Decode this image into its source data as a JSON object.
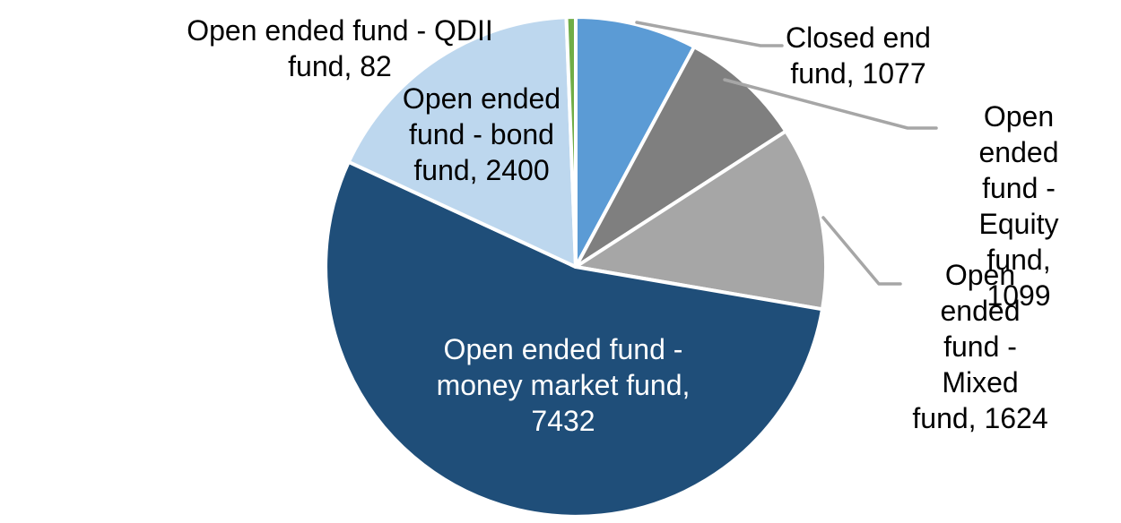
{
  "chart_data": {
    "type": "pie",
    "title": "",
    "legend": "none",
    "start_angle_deg": 0,
    "direction": "clockwise",
    "total": 13714,
    "background_color": "#ffffff",
    "slice_border_color": "#ffffff",
    "leader_line_color": "#a6a6a6",
    "slices": [
      {
        "name": "Closed end fund",
        "value": 1077,
        "color": "#5b9bd5",
        "label_text": "Closed end\nfund, 1077",
        "label_color": "#000000",
        "label_position": "outside-right-with-leader"
      },
      {
        "name": "Open ended fund - Equity fund",
        "value": 1099,
        "color": "#7f7f7f",
        "label_text": "Open ended\nfund - Equity\nfund, 1099",
        "label_color": "#000000",
        "label_position": "outside-right-with-leader"
      },
      {
        "name": "Open ended fund - Mixed fund",
        "value": 1624,
        "color": "#a6a6a6",
        "label_text": "Open ended\nfund - Mixed\nfund, 1624",
        "label_color": "#000000",
        "label_position": "outside-right-with-leader"
      },
      {
        "name": "Open ended fund - money market fund",
        "value": 7432,
        "color": "#1f4e79",
        "label_text": "Open ended fund -\nmoney market fund,\n7432",
        "label_color": "#ffffff",
        "label_position": "inside"
      },
      {
        "name": "Open ended fund - bond fund",
        "value": 2400,
        "color": "#bdd7ee",
        "label_text": "Open ended\nfund - bond\nfund, 2400",
        "label_color": "#000000",
        "label_position": "on-slice"
      },
      {
        "name": "Open ended fund - QDII fund",
        "value": 82,
        "color": "#70ad47",
        "label_text": "Open ended fund - QDII\nfund, 82",
        "label_color": "#000000",
        "label_position": "outside-top-left"
      }
    ]
  }
}
